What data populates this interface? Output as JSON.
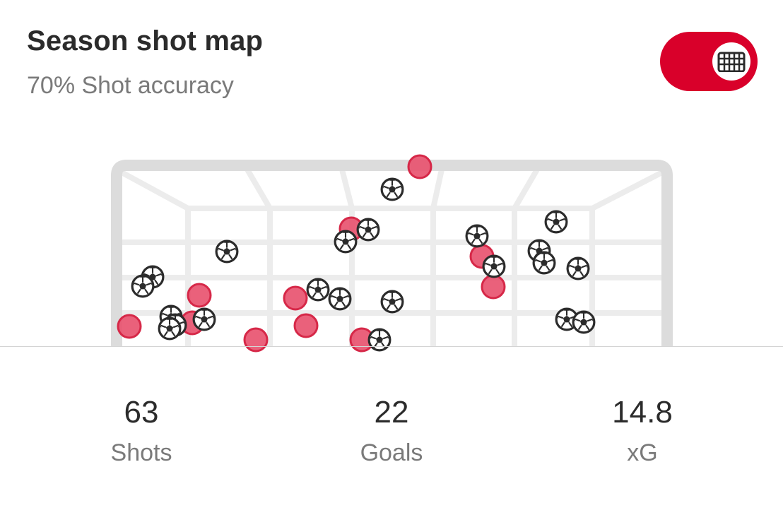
{
  "header": {
    "title": "Season shot map",
    "subtitle": "70% Shot accuracy"
  },
  "toggle": {
    "state": "on",
    "icon": "goal-net-icon",
    "color": "#d9002a"
  },
  "colors": {
    "miss_fill": "#e8506d",
    "miss_stroke": "#d62848",
    "ball_stroke": "#2b2b2b",
    "net": "#ececec",
    "frame": "#dcdcdc"
  },
  "chart_data": {
    "type": "scatter",
    "series": [
      {
        "marker": "red-dot",
        "points": [
          [
            183,
            462
          ],
          [
            272,
            457
          ],
          [
            282,
            418
          ],
          [
            362,
            481
          ],
          [
            418,
            422
          ],
          [
            433,
            461
          ],
          [
            497,
            324
          ],
          [
            512,
            481
          ],
          [
            594,
            236
          ],
          [
            682,
            363
          ],
          [
            698,
            406
          ]
        ]
      },
      {
        "marker": "soccer-ball",
        "points": [
          [
            216,
            392
          ],
          [
            202,
            405
          ],
          [
            242,
            448
          ],
          [
            248,
            460
          ],
          [
            240,
            465
          ],
          [
            289,
            452
          ],
          [
            321,
            356
          ],
          [
            450,
            410
          ],
          [
            481,
            423
          ],
          [
            489,
            342
          ],
          [
            521,
            325
          ],
          [
            555,
            268
          ],
          [
            555,
            427
          ],
          [
            537,
            481
          ],
          [
            675,
            334
          ],
          [
            699,
            377
          ],
          [
            763,
            355
          ],
          [
            770,
            372
          ],
          [
            787,
            314
          ],
          [
            818,
            380
          ],
          [
            802,
            452
          ],
          [
            826,
            456
          ]
        ]
      }
    ]
  },
  "stats": [
    {
      "value": "63",
      "label": "Shots"
    },
    {
      "value": "22",
      "label": "Goals"
    },
    {
      "value": "14.8",
      "label": "xG"
    }
  ]
}
